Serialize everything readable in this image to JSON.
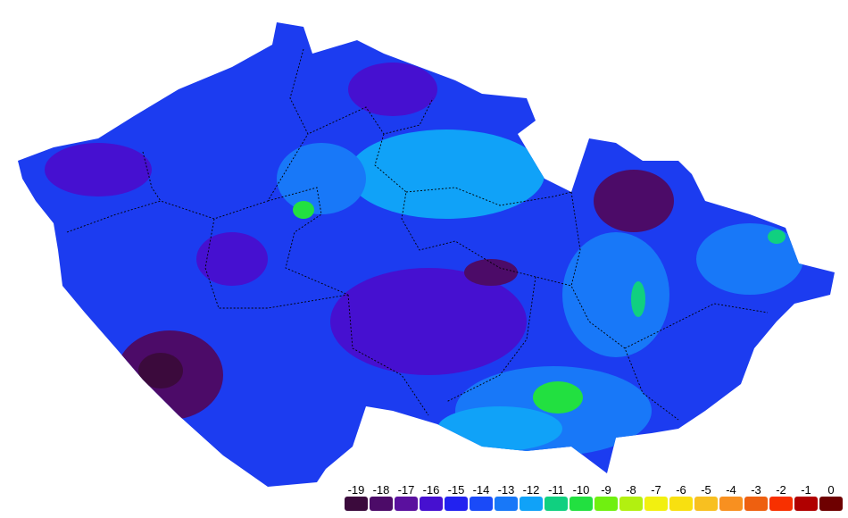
{
  "legend": {
    "items": [
      {
        "value": -19,
        "color": "#3b0a3c"
      },
      {
        "value": -18,
        "color": "#4c0b68"
      },
      {
        "value": -17,
        "color": "#5a109e"
      },
      {
        "value": -16,
        "color": "#4610d0"
      },
      {
        "value": -15,
        "color": "#2222f0"
      },
      {
        "value": -14,
        "color": "#1a4af8"
      },
      {
        "value": -13,
        "color": "#1878f8"
      },
      {
        "value": -12,
        "color": "#10a2f8"
      },
      {
        "value": -11,
        "color": "#10d080"
      },
      {
        "value": -10,
        "color": "#22e040"
      },
      {
        "value": -9,
        "color": "#70f010"
      },
      {
        "value": -8,
        "color": "#b2f010"
      },
      {
        "value": -7,
        "color": "#f2f010"
      },
      {
        "value": -6,
        "color": "#f8e010"
      },
      {
        "value": -5,
        "color": "#f8c020"
      },
      {
        "value": -4,
        "color": "#f89020"
      },
      {
        "value": -3,
        "color": "#ee6010"
      },
      {
        "value": -2,
        "color": "#f83000"
      },
      {
        "value": -1,
        "color": "#b00000"
      },
      {
        "value": 0,
        "color": "#6e0000"
      }
    ]
  }
}
